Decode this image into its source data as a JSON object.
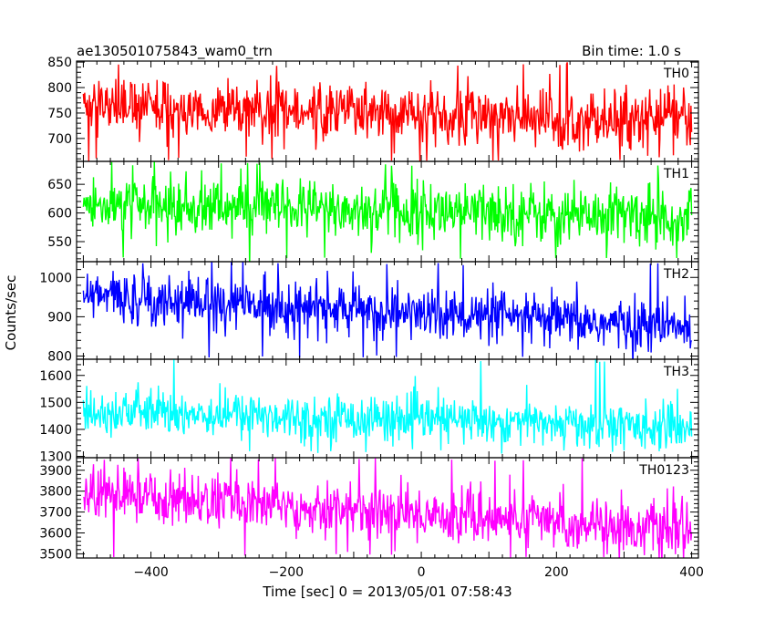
{
  "header": {
    "title": "ae130501075843_wam0_trn",
    "bin_time": "Bin time: 1.0 s"
  },
  "axes": {
    "xlabel": "Time [sec] 0 = 2013/05/01 07:58:43",
    "ylabel": "Counts/sec"
  },
  "chart_data": {
    "type": "line",
    "x_range": [
      -510,
      410
    ],
    "x_ticks": [
      -400,
      -200,
      0,
      200,
      400
    ],
    "bin_seconds": 1.0,
    "panels": [
      {
        "name": "TH0",
        "color": "#ff0000",
        "ylim": [
          655,
          852
        ],
        "y_ticks": [
          700,
          750,
          800,
          850
        ],
        "mean_start": 760,
        "mean_end": 738,
        "noise": 28,
        "peak_high": 850,
        "peak_low": 655
      },
      {
        "name": "TH1",
        "color": "#00ff00",
        "ylim": [
          515,
          690
        ],
        "y_ticks": [
          550,
          600,
          650
        ],
        "mean_start": 613,
        "mean_end": 595,
        "noise": 26,
        "peak_high": 690,
        "peak_low": 520
      },
      {
        "name": "TH2",
        "color": "#0000ff",
        "ylim": [
          792,
          1040
        ],
        "y_ticks": [
          800,
          900,
          1000
        ],
        "mean_start": 955,
        "mean_end": 870,
        "noise": 33,
        "peak_high": 1040,
        "peak_low": 795
      },
      {
        "name": "TH3",
        "color": "#00ffff",
        "ylim": [
          1295,
          1660
        ],
        "y_ticks": [
          1300,
          1400,
          1500,
          1600
        ],
        "mean_start": 1470,
        "mean_end": 1410,
        "noise": 42,
        "peak_high": 1660,
        "peak_low": 1310
      },
      {
        "name": "TH0123",
        "color": "#ff00ff",
        "ylim": [
          3480,
          3960
        ],
        "y_ticks": [
          3500,
          3600,
          3700,
          3800,
          3900
        ],
        "mean_start": 3790,
        "mean_end": 3610,
        "noise": 65,
        "peak_high": 3960,
        "peak_low": 3480
      }
    ]
  }
}
